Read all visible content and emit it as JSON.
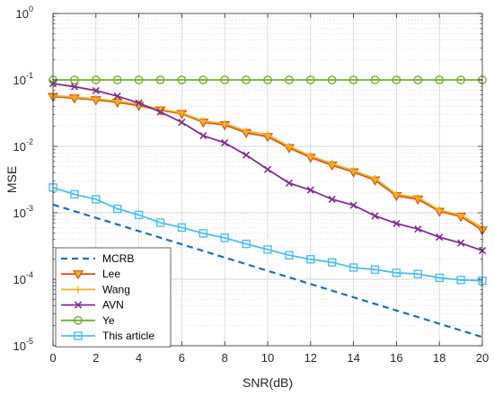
{
  "chart_data": {
    "type": "line",
    "xlabel": "SNR(dB)",
    "ylabel": "MSE",
    "xlim": [
      0,
      20
    ],
    "ylim": [
      1e-05,
      1
    ],
    "yscale": "log",
    "grid": true,
    "legend_position": "bottom-left",
    "x": [
      0,
      1,
      2,
      3,
      4,
      5,
      6,
      7,
      8,
      9,
      10,
      11,
      12,
      13,
      14,
      15,
      16,
      17,
      18,
      19,
      20
    ],
    "x_ticks": [
      "0",
      "2",
      "4",
      "6",
      "8",
      "10",
      "12",
      "14",
      "16",
      "18",
      "20"
    ],
    "y_ticks": [
      {
        "base": "10",
        "exp": "0"
      },
      {
        "base": "10",
        "exp": "-1"
      },
      {
        "base": "10",
        "exp": "-2"
      },
      {
        "base": "10",
        "exp": "-3"
      },
      {
        "base": "10",
        "exp": "-4"
      },
      {
        "base": "10",
        "exp": "-5"
      }
    ],
    "series": [
      {
        "name": "MCRB",
        "color": "#1f6fb0",
        "style": "dashed",
        "marker": "none",
        "values": [
          0.00133,
          0.001058,
          0.000841,
          0.000668,
          0.000531,
          0.000422,
          0.000336,
          0.000267,
          0.000212,
          0.000169,
          0.000134,
          0.000107,
          8.48e-05,
          6.74e-05,
          5.36e-05,
          4.26e-05,
          3.39e-05,
          2.7e-05,
          2.14e-05,
          1.7e-05,
          1.35e-05
        ]
      },
      {
        "name": "Lee",
        "color": "#d95319",
        "style": "solid",
        "marker": "triangle-down",
        "values": [
          0.056,
          0.053,
          0.05,
          0.046,
          0.041,
          0.035,
          0.031,
          0.023,
          0.021,
          0.016,
          0.014,
          0.0095,
          0.0068,
          0.0052,
          0.0041,
          0.0031,
          0.0018,
          0.0016,
          0.00105,
          0.00088,
          0.00055
        ]
      },
      {
        "name": "Wang",
        "color": "#edb120",
        "style": "solid",
        "marker": "plus",
        "values": [
          0.058,
          0.055,
          0.052,
          0.048,
          0.043,
          0.036,
          0.032,
          0.024,
          0.022,
          0.017,
          0.015,
          0.01,
          0.0072,
          0.0055,
          0.0043,
          0.0033,
          0.0019,
          0.0017,
          0.0011,
          0.00092,
          0.0006
        ]
      },
      {
        "name": "AVN",
        "color": "#7e2f8e",
        "style": "solid",
        "marker": "x",
        "values": [
          0.088,
          0.079,
          0.069,
          0.057,
          0.045,
          0.033,
          0.023,
          0.0145,
          0.0113,
          0.0074,
          0.0045,
          0.0028,
          0.0022,
          0.0016,
          0.0013,
          0.0009,
          0.00069,
          0.00057,
          0.00043,
          0.00035,
          0.00027
        ]
      },
      {
        "name": "Ye",
        "color": "#77ac30",
        "style": "solid",
        "marker": "circle",
        "values": [
          0.1,
          0.1,
          0.1,
          0.1,
          0.1,
          0.1,
          0.1,
          0.1,
          0.1,
          0.1,
          0.1,
          0.1,
          0.1,
          0.1,
          0.1,
          0.1,
          0.1,
          0.1,
          0.1,
          0.1,
          0.1
        ]
      },
      {
        "name": "This article",
        "color": "#4dbeee",
        "style": "solid",
        "marker": "square",
        "values": [
          0.0024,
          0.0019,
          0.0016,
          0.00115,
          0.00093,
          0.00071,
          0.0006,
          0.00049,
          0.00042,
          0.00034,
          0.00028,
          0.00023,
          0.0002,
          0.00018,
          0.00015,
          0.00014,
          0.000125,
          0.00012,
          0.000105,
          9.75e-05,
          9.5e-05
        ]
      }
    ]
  }
}
